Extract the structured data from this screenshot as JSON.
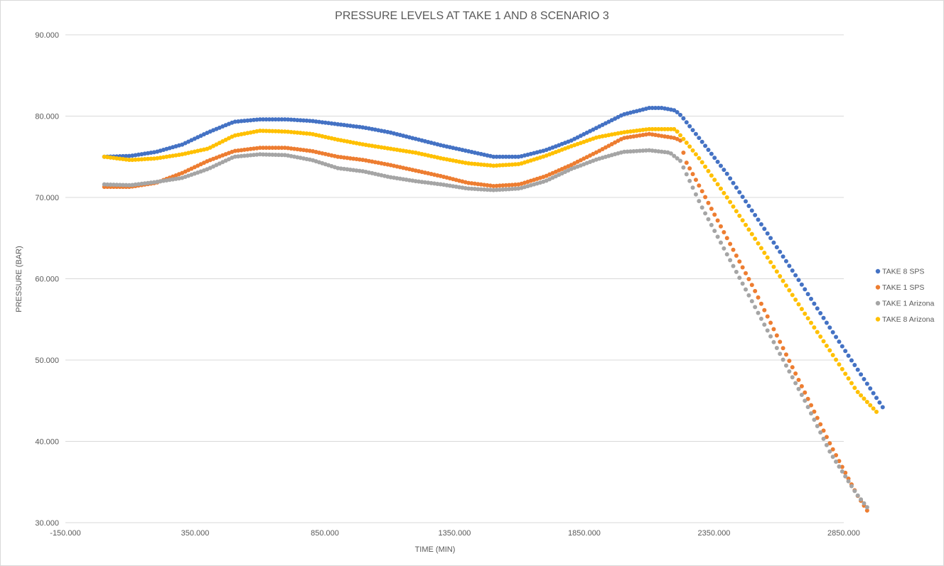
{
  "chart_data": {
    "type": "scatter",
    "title": "PRESSURE LEVELS AT TAKE 1 AND 8 SCENARIO 3",
    "xlabel": "TIME (MIN)",
    "ylabel": "PRESSURE  (BAR)",
    "xlim": [
      -150,
      2850
    ],
    "ylim": [
      30,
      90
    ],
    "x_ticks": [
      -150,
      350,
      850,
      1350,
      1850,
      2350,
      2850
    ],
    "x_tick_labels": [
      "-150.000",
      "350.000",
      "850.000",
      "1350.000",
      "1850.000",
      "2350.000",
      "2850.000"
    ],
    "y_ticks": [
      30,
      40,
      50,
      60,
      70,
      80,
      90
    ],
    "y_tick_labels": [
      "30.000",
      "40.000",
      "50.000",
      "60.000",
      "70.000",
      "80.000",
      "90.000"
    ],
    "grid": "horizontal",
    "legend_position": "right",
    "series": [
      {
        "name": "TAKE 8 SPS",
        "color": "#4472C4",
        "points": [
          [
            0,
            75.0
          ],
          [
            100,
            75.1
          ],
          [
            200,
            75.6
          ],
          [
            300,
            76.5
          ],
          [
            400,
            78.0
          ],
          [
            500,
            79.3
          ],
          [
            600,
            79.6
          ],
          [
            700,
            79.6
          ],
          [
            800,
            79.4
          ],
          [
            900,
            79.0
          ],
          [
            1000,
            78.6
          ],
          [
            1100,
            78.0
          ],
          [
            1200,
            77.2
          ],
          [
            1300,
            76.4
          ],
          [
            1400,
            75.7
          ],
          [
            1500,
            75.0
          ],
          [
            1600,
            75.0
          ],
          [
            1700,
            75.8
          ],
          [
            1800,
            77.0
          ],
          [
            1900,
            78.6
          ],
          [
            2000,
            80.2
          ],
          [
            2100,
            81.0
          ],
          [
            2150,
            81.0
          ],
          [
            2200,
            80.7
          ],
          [
            2225,
            80.0
          ],
          [
            2300,
            77.0
          ],
          [
            2400,
            72.9
          ],
          [
            2500,
            68.2
          ],
          [
            2600,
            63.5
          ],
          [
            2700,
            58.7
          ],
          [
            2800,
            53.8
          ],
          [
            2900,
            49.0
          ],
          [
            3000,
            44.2
          ]
        ]
      },
      {
        "name": "TAKE 1 SPS",
        "color": "#ED7D31",
        "points": [
          [
            0,
            71.3
          ],
          [
            100,
            71.3
          ],
          [
            200,
            71.8
          ],
          [
            300,
            73.0
          ],
          [
            400,
            74.5
          ],
          [
            500,
            75.7
          ],
          [
            600,
            76.1
          ],
          [
            700,
            76.1
          ],
          [
            800,
            75.7
          ],
          [
            900,
            75.0
          ],
          [
            1000,
            74.6
          ],
          [
            1100,
            74.0
          ],
          [
            1200,
            73.3
          ],
          [
            1300,
            72.6
          ],
          [
            1400,
            71.8
          ],
          [
            1500,
            71.4
          ],
          [
            1600,
            71.6
          ],
          [
            1700,
            72.6
          ],
          [
            1800,
            74.0
          ],
          [
            1900,
            75.6
          ],
          [
            2000,
            77.3
          ],
          [
            2100,
            77.8
          ],
          [
            2200,
            77.3
          ],
          [
            2220,
            77.0
          ],
          [
            2240,
            74.5
          ],
          [
            2300,
            71.0
          ],
          [
            2400,
            65.0
          ],
          [
            2500,
            59.0
          ],
          [
            2600,
            52.5
          ],
          [
            2700,
            46.0
          ],
          [
            2800,
            39.5
          ],
          [
            2900,
            33.5
          ],
          [
            2940,
            31.5
          ]
        ]
      },
      {
        "name": "TAKE 1 Arizona",
        "color": "#A5A5A5",
        "points": [
          [
            0,
            71.6
          ],
          [
            100,
            71.5
          ],
          [
            200,
            71.9
          ],
          [
            300,
            72.4
          ],
          [
            400,
            73.5
          ],
          [
            500,
            75.0
          ],
          [
            600,
            75.3
          ],
          [
            700,
            75.2
          ],
          [
            800,
            74.6
          ],
          [
            900,
            73.6
          ],
          [
            1000,
            73.2
          ],
          [
            1100,
            72.5
          ],
          [
            1200,
            72.0
          ],
          [
            1300,
            71.6
          ],
          [
            1400,
            71.1
          ],
          [
            1500,
            70.9
          ],
          [
            1600,
            71.1
          ],
          [
            1700,
            72.0
          ],
          [
            1800,
            73.5
          ],
          [
            1900,
            74.7
          ],
          [
            2000,
            75.6
          ],
          [
            2100,
            75.8
          ],
          [
            2180,
            75.5
          ],
          [
            2220,
            74.5
          ],
          [
            2300,
            69.0
          ],
          [
            2400,
            63.0
          ],
          [
            2500,
            57.0
          ],
          [
            2600,
            51.0
          ],
          [
            2700,
            45.0
          ],
          [
            2800,
            38.5
          ],
          [
            2900,
            33.5
          ],
          [
            2940,
            31.9
          ]
        ]
      },
      {
        "name": "TAKE 8 Arizona",
        "color": "#FFC000",
        "points": [
          [
            0,
            75.0
          ],
          [
            100,
            74.6
          ],
          [
            200,
            74.8
          ],
          [
            300,
            75.3
          ],
          [
            400,
            76.0
          ],
          [
            500,
            77.6
          ],
          [
            600,
            78.2
          ],
          [
            700,
            78.1
          ],
          [
            800,
            77.8
          ],
          [
            900,
            77.1
          ],
          [
            1000,
            76.5
          ],
          [
            1100,
            76.0
          ],
          [
            1200,
            75.5
          ],
          [
            1300,
            74.8
          ],
          [
            1400,
            74.2
          ],
          [
            1500,
            73.9
          ],
          [
            1600,
            74.1
          ],
          [
            1700,
            75.1
          ],
          [
            1800,
            76.3
          ],
          [
            1900,
            77.4
          ],
          [
            2000,
            78.0
          ],
          [
            2100,
            78.4
          ],
          [
            2200,
            78.4
          ],
          [
            2250,
            76.5
          ],
          [
            2300,
            74.5
          ],
          [
            2400,
            70.0
          ],
          [
            2500,
            65.3
          ],
          [
            2600,
            60.5
          ],
          [
            2700,
            55.7
          ],
          [
            2800,
            51.0
          ],
          [
            2900,
            46.2
          ],
          [
            2980,
            43.5
          ]
        ]
      }
    ]
  }
}
